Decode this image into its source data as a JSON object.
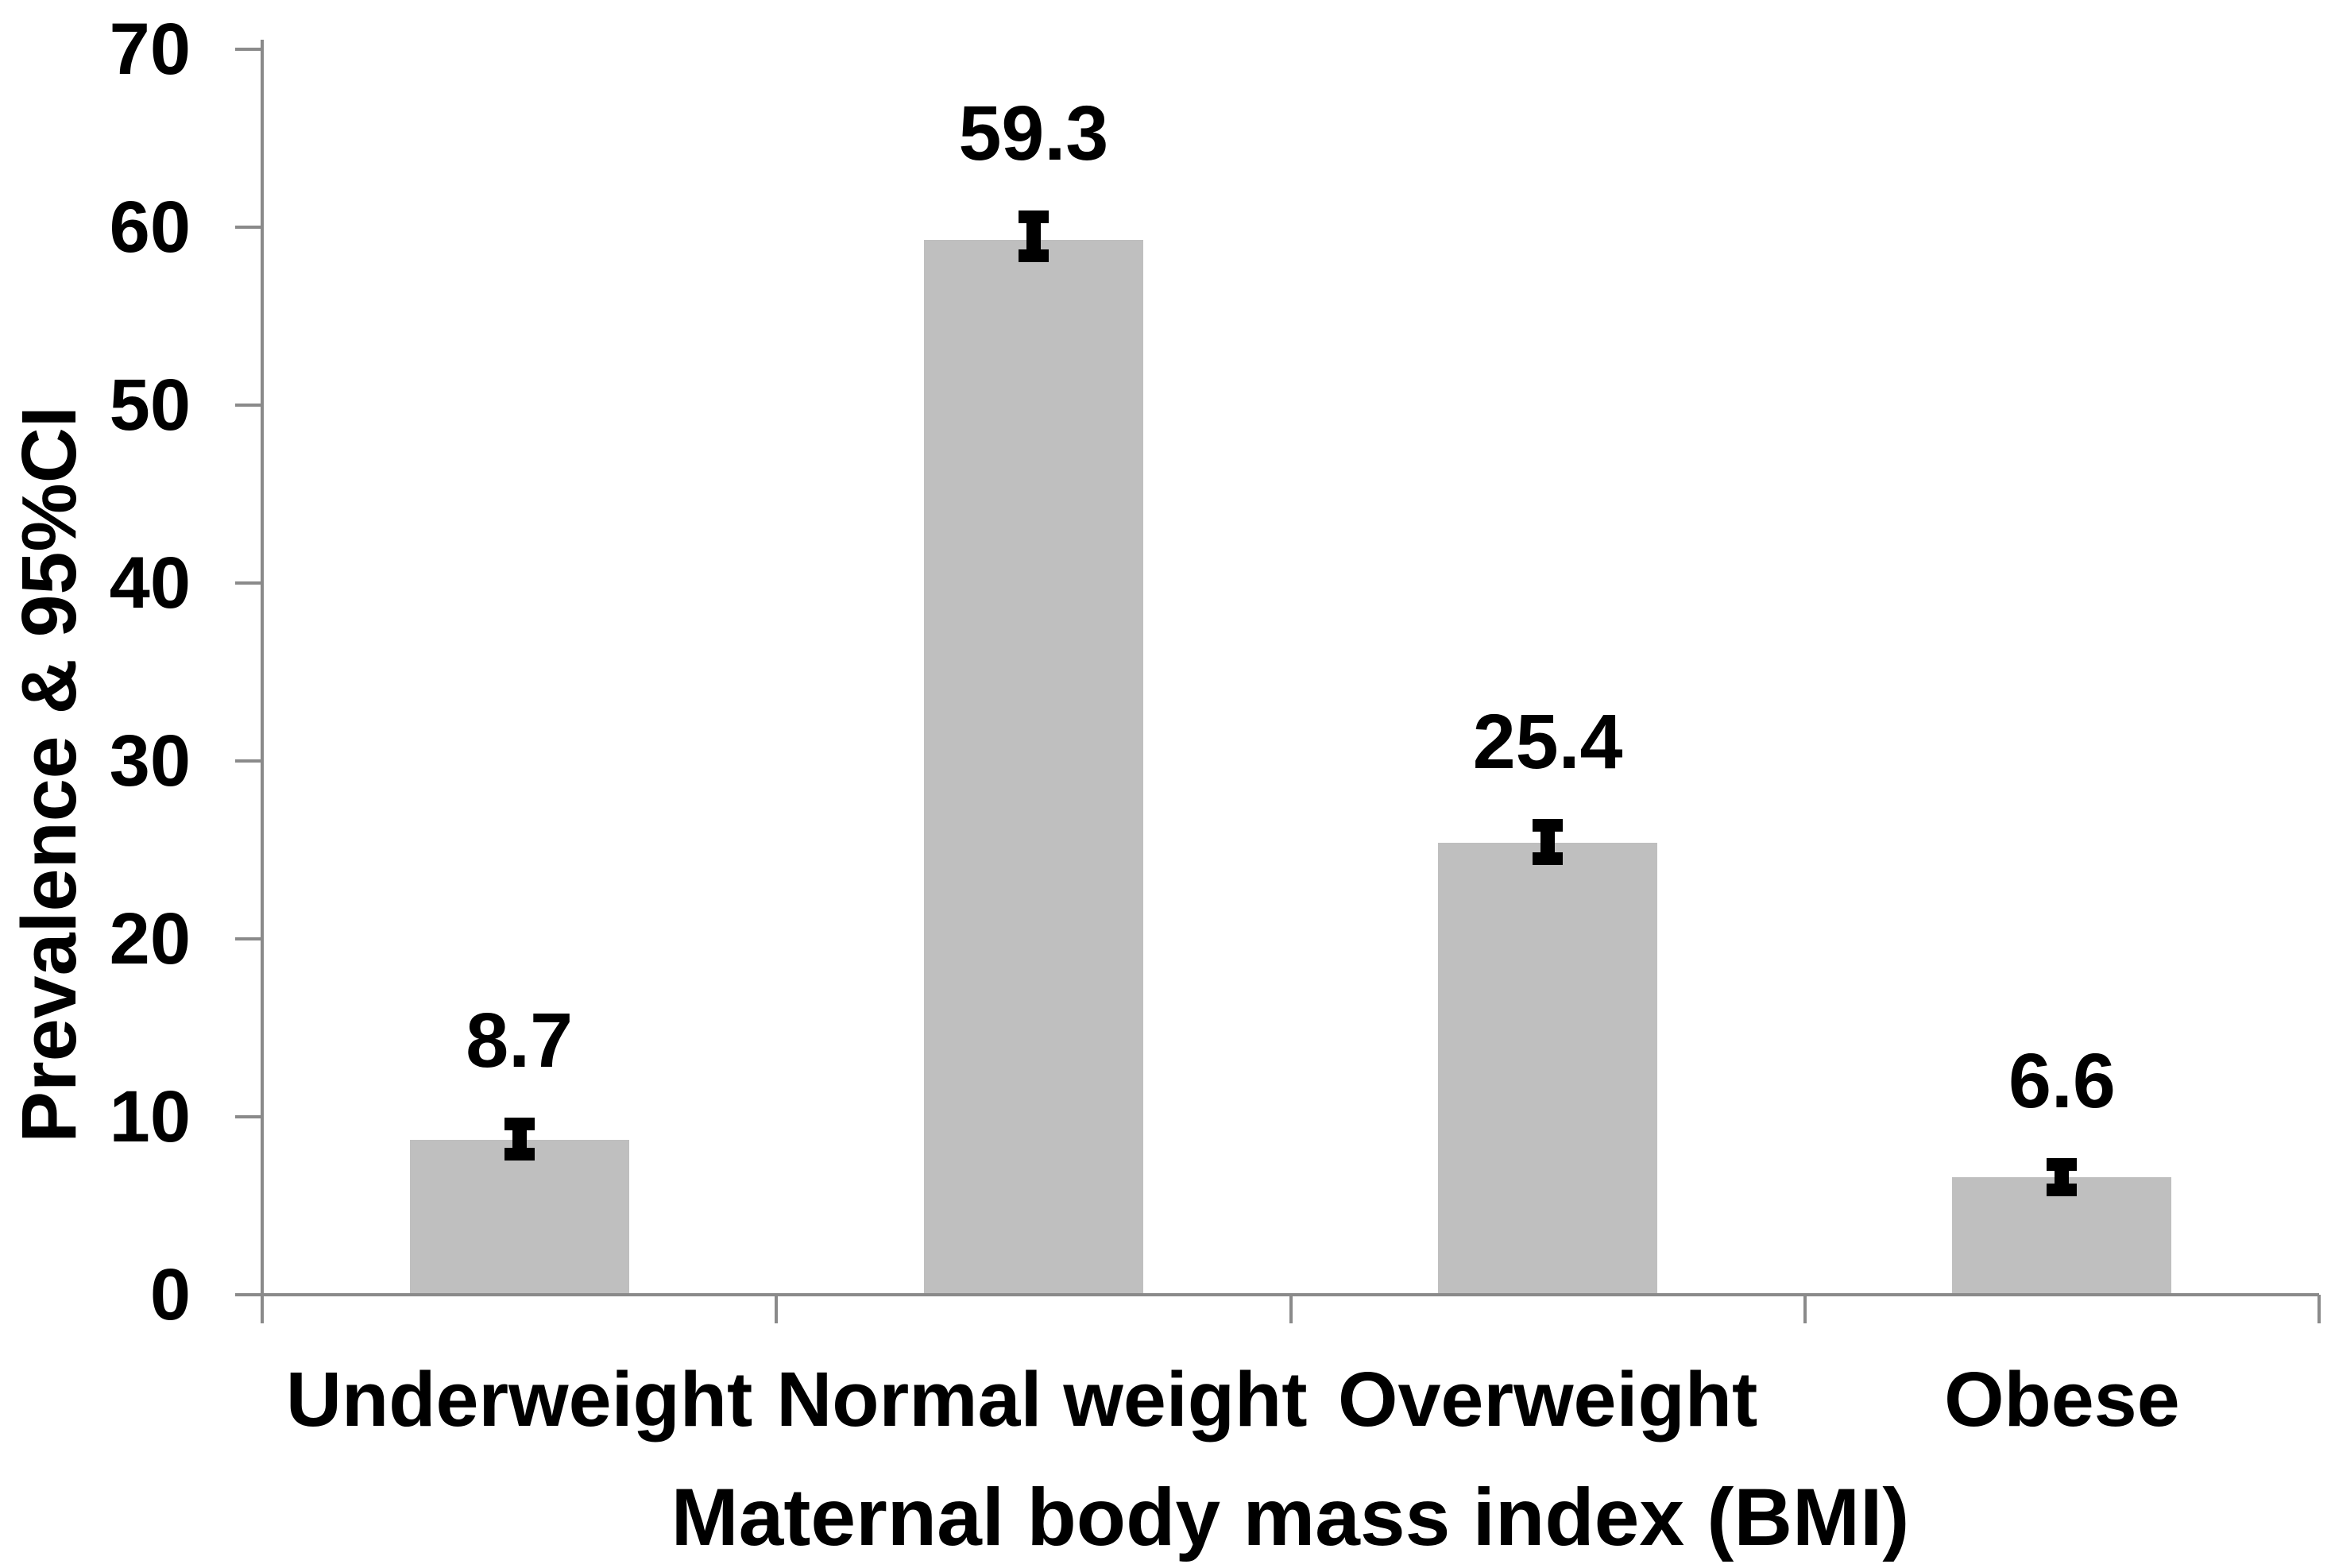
{
  "chart_data": {
    "type": "bar",
    "title": "",
    "categories": [
      "Underweight",
      "Normal weight",
      "Overweight",
      "Obese"
    ],
    "values": [
      8.7,
      59.3,
      25.4,
      6.6
    ],
    "data_labels": [
      "8.7",
      "59.3",
      "25.4",
      "6.6"
    ],
    "error_bars_95ci": [
      {
        "low": 7.9,
        "high": 9.6
      },
      {
        "low": 58.4,
        "high": 60.6
      },
      {
        "low": 24.5,
        "high": 26.4
      },
      {
        "low": 5.9,
        "high": 7.3
      }
    ],
    "xlabel": "Maternal body mass index (BMI)",
    "ylabel": "Prevalence & 95%CI",
    "ylim": [
      0,
      70
    ],
    "yticks": [
      0,
      10,
      20,
      30,
      40,
      50,
      60,
      70
    ],
    "grid": false,
    "legend": "none",
    "bar_color": "#BFBFBF",
    "axis_color": "#8A8A8A",
    "error_bar_color": "#000000",
    "text_color": "#000000",
    "background_color": "#FFFFFF"
  }
}
